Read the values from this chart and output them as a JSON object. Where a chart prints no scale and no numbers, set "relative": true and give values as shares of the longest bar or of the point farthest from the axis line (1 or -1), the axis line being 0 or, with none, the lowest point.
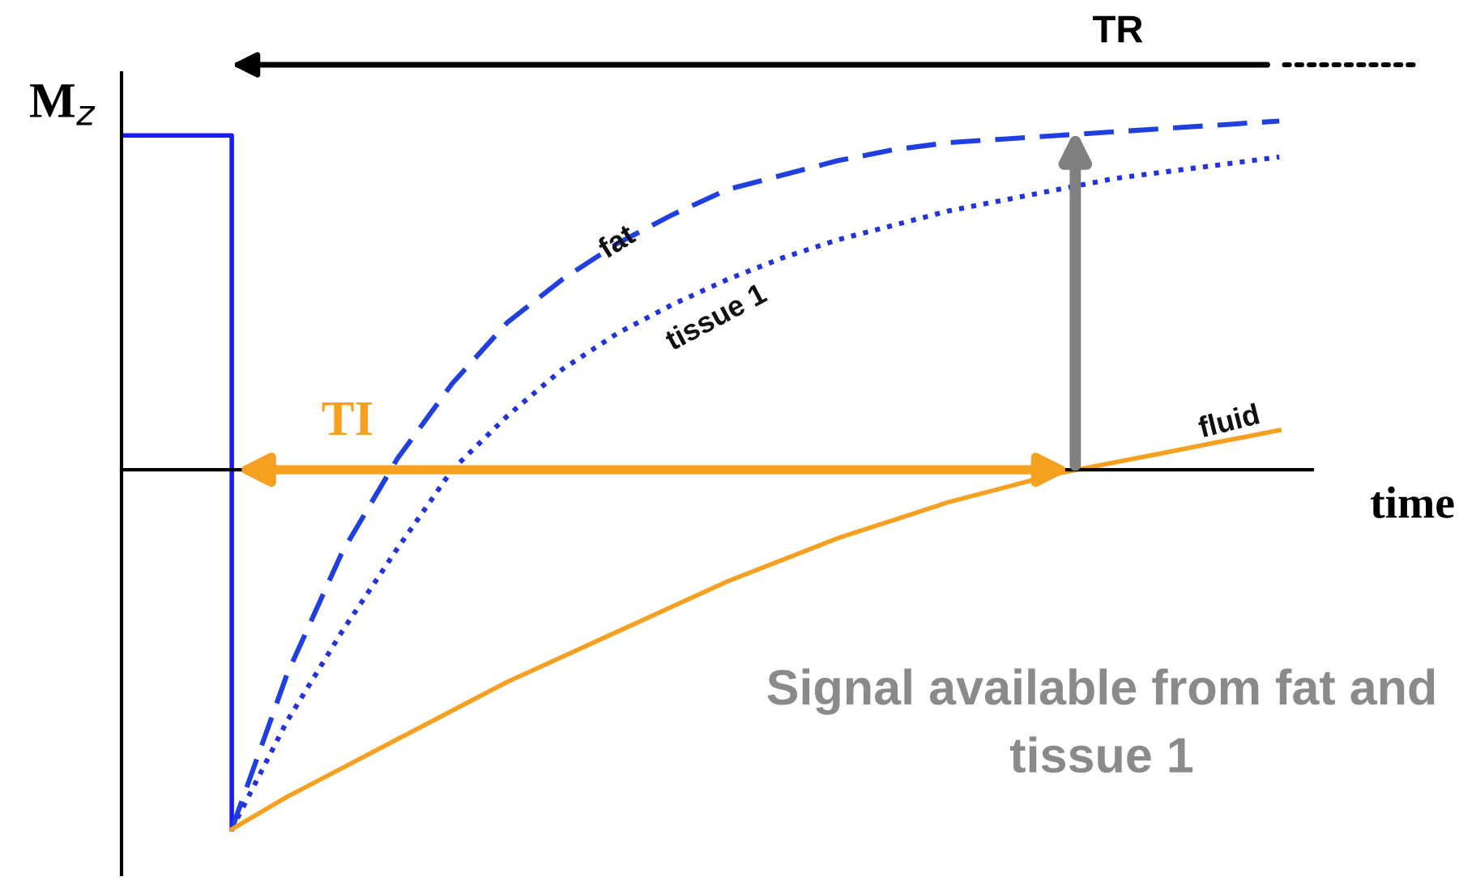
{
  "chart_data": {
    "type": "line",
    "relative": true,
    "xlabel": "time",
    "ylabel": "M$_{z}$",
    "categories": [
      null,
      null,
      null,
      null,
      null,
      null,
      null,
      null,
      null,
      null,
      null,
      null,
      null,
      null,
      null,
      null,
      null,
      null,
      null,
      null,
      null,
      null
    ],
    "series": [
      {
        "type": "step",
        "color": "#1a1aff",
        "line_style": "solid",
        "values": [
          0.93,
          0.93,
          -1,
          null,
          null,
          null,
          null,
          null,
          null,
          null,
          null,
          null,
          null,
          null,
          null,
          null,
          null,
          null,
          null,
          null,
          null,
          null
        ]
      },
      {
        "name": "fat",
        "color": "#1f3fdf",
        "line_style": "dashed",
        "values": [
          null,
          null,
          -1,
          -0.57,
          -0.23,
          0.03,
          0.24,
          0.41,
          0.53,
          0.63,
          0.71,
          0.78,
          0.82,
          0.86,
          0.89,
          0.91,
          0.92,
          0.93,
          0.94,
          0.95,
          0.96,
          0.97
        ]
      },
      {
        "name": "tissue 1",
        "color": "#2233dd",
        "line_style": "dotted",
        "values": [
          null,
          null,
          -1,
          -0.7,
          -0.45,
          -0.22,
          0,
          0.15,
          0.28,
          0.38,
          0.46,
          0.53,
          0.59,
          0.64,
          0.68,
          0.72,
          0.75,
          0.78,
          0.81,
          0.83,
          0.85,
          0.87
        ]
      },
      {
        "name": "fluid",
        "color": "#f5a020",
        "line_style": "solid",
        "values": [
          null,
          null,
          -1,
          -0.91,
          -0.83,
          -0.75,
          -0.67,
          -0.59,
          -0.52,
          -0.45,
          -0.38,
          -0.31,
          -0.25,
          -0.19,
          -0.14,
          -0.09,
          -0.05,
          -0.01,
          0.02,
          0.05,
          0.08,
          0.11
        ]
      }
    ],
    "annotations": [
      "TI",
      "TR",
      "Signal available from fat and tissue 1"
    ],
    "tick_labels": false
  }
}
